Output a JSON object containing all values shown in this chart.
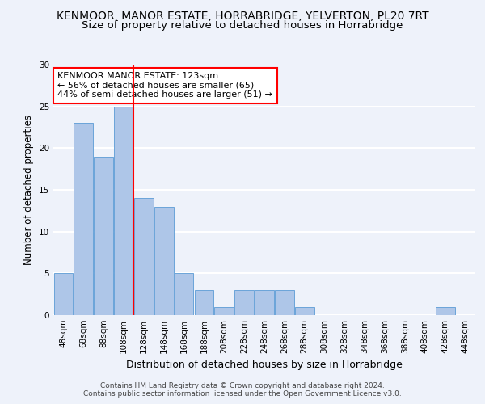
{
  "title": "KENMOOR, MANOR ESTATE, HORRABRIDGE, YELVERTON, PL20 7RT",
  "subtitle": "Size of property relative to detached houses in Horrabridge",
  "xlabel": "Distribution of detached houses by size in Horrabridge",
  "ylabel": "Number of detached properties",
  "footer_line1": "Contains HM Land Registry data © Crown copyright and database right 2024.",
  "footer_line2": "Contains public sector information licensed under the Open Government Licence v3.0.",
  "bar_labels": [
    "48sqm",
    "68sqm",
    "88sqm",
    "108sqm",
    "128sqm",
    "148sqm",
    "168sqm",
    "188sqm",
    "208sqm",
    "228sqm",
    "248sqm",
    "268sqm",
    "288sqm",
    "308sqm",
    "328sqm",
    "348sqm",
    "368sqm",
    "388sqm",
    "408sqm",
    "428sqm",
    "448sqm"
  ],
  "bar_values": [
    5,
    23,
    19,
    25,
    14,
    13,
    5,
    3,
    1,
    3,
    3,
    3,
    1,
    0,
    0,
    0,
    0,
    0,
    0,
    1,
    0
  ],
  "bar_color": "#aec6e8",
  "bar_edge_color": "#5b9bd5",
  "property_line_color": "red",
  "annotation_text": "KENMOOR MANOR ESTATE: 123sqm\n← 56% of detached houses are smaller (65)\n44% of semi-detached houses are larger (51) →",
  "annotation_box_color": "white",
  "annotation_box_edge_color": "red",
  "ylim": [
    0,
    30
  ],
  "background_color": "#eef2fa",
  "plot_background_color": "#eef2fa",
  "grid_color": "white",
  "title_fontsize": 10,
  "subtitle_fontsize": 9.5,
  "xlabel_fontsize": 9,
  "ylabel_fontsize": 8.5,
  "tick_fontsize": 7.5,
  "annotation_fontsize": 8,
  "footer_fontsize": 6.5
}
